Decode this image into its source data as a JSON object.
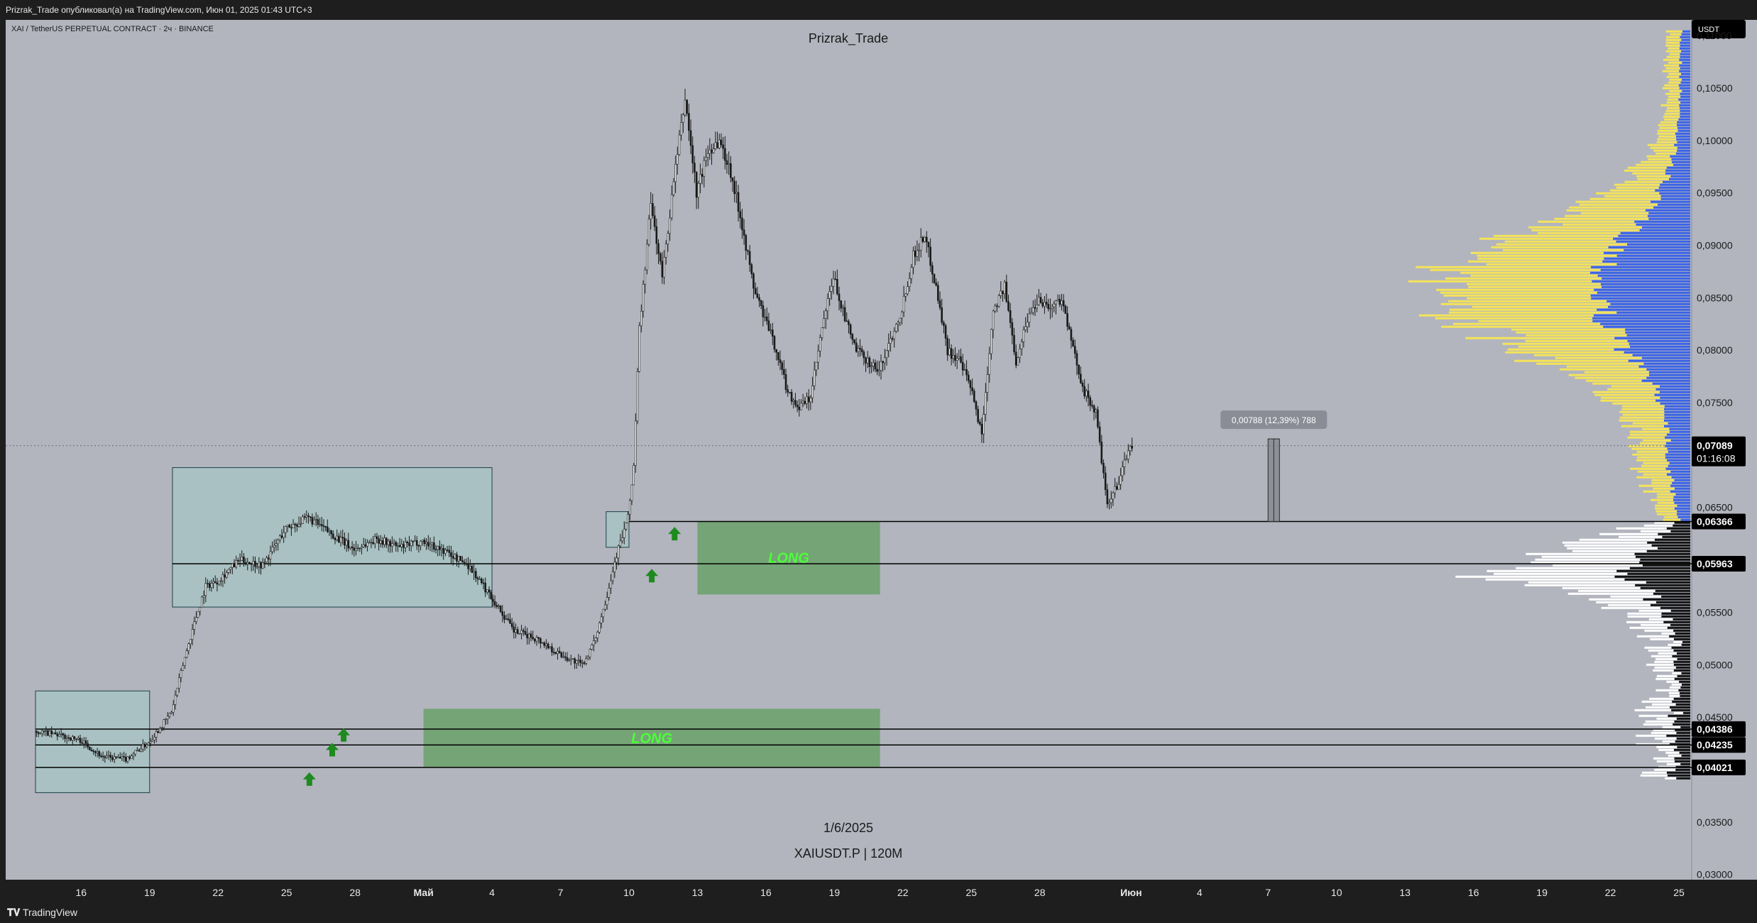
{
  "header": {
    "published": "Prizrak_Trade опубликовал(а) на TradingView.com, Июн 01, 2025 01:43 UTC+3"
  },
  "footer": {
    "brand": "TradingView"
  },
  "colors": {
    "background": "#b2b5be",
    "candle": "#1a1a1a",
    "zone": "#6aa16a",
    "long_text": "#4cff3a",
    "arrow": "#1f8a1f",
    "profile_blue": "#3b63e6",
    "profile_yellow": "#f4e35a",
    "profile_black": "#111111",
    "profile_white": "#ffffff"
  },
  "chart_data": {
    "type": "candlestick",
    "symbol_line": "XAI / TetherUS PERPETUAL CONTRACT · 2ч · BINANCE",
    "author": "Prizrak_Trade",
    "watermark_date": "1/6/2025",
    "watermark_symbol": "XAIUSDT.P | 120M",
    "currency_badge": "USDT",
    "ylim": [
      0.0295,
      0.1115
    ],
    "y_ticks": [
      {
        "value": 0.11,
        "label": "0,11000"
      },
      {
        "value": 0.105,
        "label": "0,10500"
      },
      {
        "value": 0.1,
        "label": "0,10000"
      },
      {
        "value": 0.095,
        "label": "0,09500"
      },
      {
        "value": 0.09,
        "label": "0,09000"
      },
      {
        "value": 0.085,
        "label": "0,08500"
      },
      {
        "value": 0.08,
        "label": "0,08000"
      },
      {
        "value": 0.075,
        "label": "0,07500"
      },
      {
        "value": 0.065,
        "label": "0,06500"
      },
      {
        "value": 0.055,
        "label": "0,05500"
      },
      {
        "value": 0.05,
        "label": "0,05000"
      },
      {
        "value": 0.045,
        "label": "0,04500"
      },
      {
        "value": 0.035,
        "label": "0,03500"
      },
      {
        "value": 0.03,
        "label": "0,03000"
      }
    ],
    "x_start": "2025-04-14",
    "x_end": "2025-06-25",
    "x_ticks": [
      {
        "date": "2025-04-16",
        "label": "16"
      },
      {
        "date": "2025-04-19",
        "label": "19"
      },
      {
        "date": "2025-04-22",
        "label": "22"
      },
      {
        "date": "2025-04-25",
        "label": "25"
      },
      {
        "date": "2025-04-28",
        "label": "28"
      },
      {
        "date": "2025-05-01",
        "label": "Май"
      },
      {
        "date": "2025-05-04",
        "label": "4"
      },
      {
        "date": "2025-05-07",
        "label": "7"
      },
      {
        "date": "2025-05-10",
        "label": "10"
      },
      {
        "date": "2025-05-13",
        "label": "13"
      },
      {
        "date": "2025-05-16",
        "label": "16"
      },
      {
        "date": "2025-05-19",
        "label": "19"
      },
      {
        "date": "2025-05-22",
        "label": "22"
      },
      {
        "date": "2025-05-25",
        "label": "25"
      },
      {
        "date": "2025-05-28",
        "label": "28"
      },
      {
        "date": "2025-06-01",
        "label": "Июн"
      },
      {
        "date": "2025-06-04",
        "label": "4"
      },
      {
        "date": "2025-06-07",
        "label": "7"
      },
      {
        "date": "2025-06-10",
        "label": "10"
      },
      {
        "date": "2025-06-13",
        "label": "13"
      },
      {
        "date": "2025-06-16",
        "label": "16"
      },
      {
        "date": "2025-06-19",
        "label": "19"
      },
      {
        "date": "2025-06-22",
        "label": "22"
      },
      {
        "date": "2025-06-25",
        "label": "25"
      }
    ],
    "price_path": [
      {
        "date": "2025-04-14",
        "price": 0.0437
      },
      {
        "date": "2025-04-15",
        "price": 0.0433
      },
      {
        "date": "2025-04-16",
        "price": 0.0428
      },
      {
        "date": "2025-04-17",
        "price": 0.0412
      },
      {
        "date": "2025-04-18",
        "price": 0.041
      },
      {
        "date": "2025-04-18T12",
        "price": 0.0418
      },
      {
        "date": "2025-04-19",
        "price": 0.0426
      },
      {
        "date": "2025-04-19T12",
        "price": 0.044
      },
      {
        "date": "2025-04-20",
        "price": 0.0455
      },
      {
        "date": "2025-04-20T12",
        "price": 0.05
      },
      {
        "date": "2025-04-21",
        "price": 0.054
      },
      {
        "date": "2025-04-21T12",
        "price": 0.0575
      },
      {
        "date": "2025-04-22",
        "price": 0.058
      },
      {
        "date": "2025-04-23",
        "price": 0.06
      },
      {
        "date": "2025-04-24",
        "price": 0.0595
      },
      {
        "date": "2025-04-25",
        "price": 0.063
      },
      {
        "date": "2025-04-26",
        "price": 0.064
      },
      {
        "date": "2025-04-27",
        "price": 0.0625
      },
      {
        "date": "2025-04-28",
        "price": 0.061
      },
      {
        "date": "2025-04-29",
        "price": 0.062
      },
      {
        "date": "2025-04-30",
        "price": 0.0612
      },
      {
        "date": "2025-05-01",
        "price": 0.0618
      },
      {
        "date": "2025-05-02",
        "price": 0.0608
      },
      {
        "date": "2025-05-03",
        "price": 0.0595
      },
      {
        "date": "2025-05-04",
        "price": 0.0565
      },
      {
        "date": "2025-05-05",
        "price": 0.0532
      },
      {
        "date": "2025-05-06",
        "price": 0.0525
      },
      {
        "date": "2025-05-07",
        "price": 0.051
      },
      {
        "date": "2025-05-08",
        "price": 0.05
      },
      {
        "date": "2025-05-08T12",
        "price": 0.052
      },
      {
        "date": "2025-05-09",
        "price": 0.056
      },
      {
        "date": "2025-05-09T12",
        "price": 0.0605
      },
      {
        "date": "2025-05-10",
        "price": 0.064
      },
      {
        "date": "2025-05-10T06",
        "price": 0.069
      },
      {
        "date": "2025-05-10T12",
        "price": 0.082
      },
      {
        "date": "2025-05-11",
        "price": 0.094
      },
      {
        "date": "2025-05-11T12",
        "price": 0.087
      },
      {
        "date": "2025-05-12",
        "price": 0.096
      },
      {
        "date": "2025-05-12T12",
        "price": 0.104
      },
      {
        "date": "2025-05-13",
        "price": 0.095
      },
      {
        "date": "2025-05-13T12",
        "price": 0.099
      },
      {
        "date": "2025-05-14",
        "price": 0.1
      },
      {
        "date": "2025-05-14T12",
        "price": 0.097
      },
      {
        "date": "2025-05-15",
        "price": 0.092
      },
      {
        "date": "2025-05-15T12",
        "price": 0.086
      },
      {
        "date": "2025-05-16",
        "price": 0.083
      },
      {
        "date": "2025-05-16T12",
        "price": 0.08
      },
      {
        "date": "2025-05-17",
        "price": 0.076
      },
      {
        "date": "2025-05-17T12",
        "price": 0.0745
      },
      {
        "date": "2025-05-18",
        "price": 0.0755
      },
      {
        "date": "2025-05-18T12",
        "price": 0.082
      },
      {
        "date": "2025-05-19",
        "price": 0.087
      },
      {
        "date": "2025-05-19T12",
        "price": 0.083
      },
      {
        "date": "2025-05-20",
        "price": 0.08
      },
      {
        "date": "2025-05-20T12",
        "price": 0.079
      },
      {
        "date": "2025-05-21",
        "price": 0.078
      },
      {
        "date": "2025-05-21T12",
        "price": 0.081
      },
      {
        "date": "2025-05-22",
        "price": 0.084
      },
      {
        "date": "2025-05-22T12",
        "price": 0.089
      },
      {
        "date": "2025-05-23",
        "price": 0.091
      },
      {
        "date": "2025-05-23T12",
        "price": 0.086
      },
      {
        "date": "2025-05-24",
        "price": 0.08
      },
      {
        "date": "2025-05-24T12",
        "price": 0.079
      },
      {
        "date": "2025-05-25",
        "price": 0.0765
      },
      {
        "date": "2025-05-25T12",
        "price": 0.072
      },
      {
        "date": "2025-05-26",
        "price": 0.084
      },
      {
        "date": "2025-05-26T12",
        "price": 0.086
      },
      {
        "date": "2025-05-27",
        "price": 0.079
      },
      {
        "date": "2025-05-27T12",
        "price": 0.083
      },
      {
        "date": "2025-05-28",
        "price": 0.085
      },
      {
        "date": "2025-05-28T12",
        "price": 0.084
      },
      {
        "date": "2025-05-29",
        "price": 0.085
      },
      {
        "date": "2025-05-29T12",
        "price": 0.08
      },
      {
        "date": "2025-05-30",
        "price": 0.076
      },
      {
        "date": "2025-05-30T12",
        "price": 0.074
      },
      {
        "date": "2025-05-31",
        "price": 0.065
      },
      {
        "date": "2025-05-31T12",
        "price": 0.0675
      },
      {
        "date": "2025-06-01",
        "price": 0.0709
      }
    ],
    "horizontal_lines": [
      {
        "price": 0.06366,
        "from": "2025-05-10",
        "label": "0,06366"
      },
      {
        "price": 0.05963,
        "from": "2025-04-20",
        "label": "0,05963"
      },
      {
        "price": 0.04386,
        "from": "2025-04-14",
        "label": "0,04386"
      },
      {
        "price": 0.04235,
        "from": "2025-04-14",
        "label": "0,04235"
      },
      {
        "price": 0.04021,
        "from": "2025-04-14",
        "label": "0,04021"
      }
    ],
    "current_price": {
      "price": 0.07089,
      "label": "0,07089",
      "countdown": "01:16:08"
    },
    "zones": [
      {
        "label": "LONG",
        "from": "2025-05-13",
        "to": "2025-05-21",
        "top": 0.0637,
        "bottom": 0.0567
      },
      {
        "label": "LONG",
        "from": "2025-05-01",
        "to": "2025-05-21",
        "top": 0.0458,
        "bottom": 0.0402
      }
    ],
    "boxes": [
      {
        "from": "2025-04-14",
        "to": "2025-04-19",
        "top": 0.0475,
        "bottom": 0.0378
      },
      {
        "from": "2025-04-20",
        "to": "2025-05-04",
        "top": 0.0688,
        "bottom": 0.0555
      },
      {
        "from": "2025-05-09",
        "to": "2025-05-10",
        "top": 0.0646,
        "bottom": 0.0612
      }
    ],
    "arrows": [
      {
        "date": "2025-04-26",
        "price": 0.039
      },
      {
        "date": "2025-04-27",
        "price": 0.0418
      },
      {
        "date": "2025-04-27T12",
        "price": 0.0432
      },
      {
        "date": "2025-05-11",
        "price": 0.0584
      },
      {
        "date": "2025-05-12",
        "price": 0.0624
      }
    ],
    "measure": {
      "label": "0,00788 (12,39%) 788",
      "from": "2025-06-07",
      "to": "2025-06-07T12",
      "top": 0.07154,
      "bottom": 0.06366
    }
  }
}
